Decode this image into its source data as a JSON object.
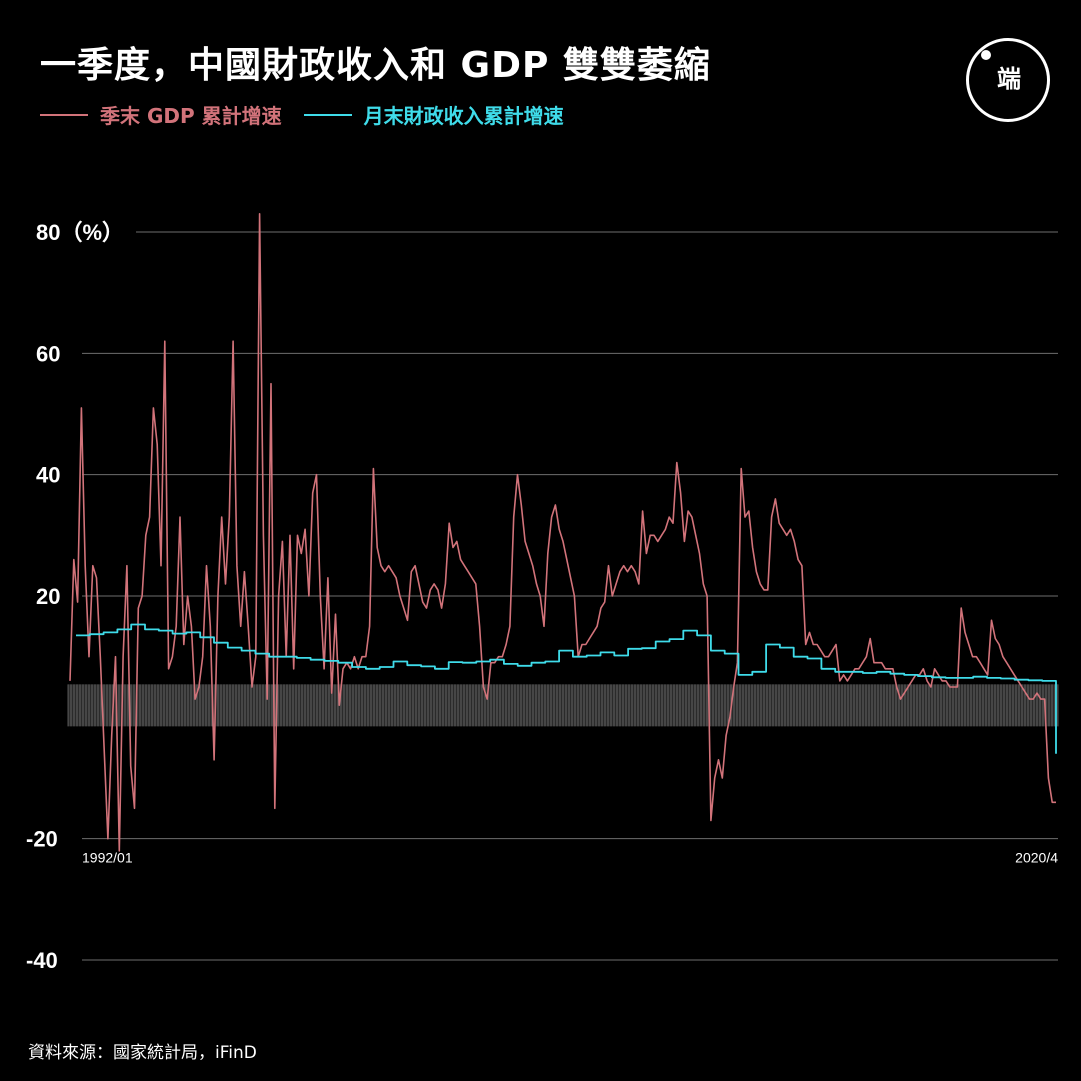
{
  "title": "一季度，中國財政收入和 GDP 雙雙萎縮",
  "logo": {
    "text": "端"
  },
  "source": "資料來源：國家統計局，iFinD",
  "chart_data": {
    "type": "line",
    "ylabel_unit": "（%）",
    "ylim": [
      -40,
      80
    ],
    "yticks": [
      80,
      60,
      40,
      20,
      -20,
      -40
    ],
    "x_range": [
      "1992/01",
      "2020/4"
    ],
    "x_tick_labels": [
      "1992/01",
      "2020/4"
    ],
    "legend_placement": "top-left",
    "grid": true,
    "series": [
      {
        "name": "季末 GDP 累計增速",
        "color": "#d2737a",
        "values": [
          6,
          26,
          19,
          51,
          25,
          10,
          25,
          23,
          10,
          -5,
          -20,
          -3,
          10,
          -22,
          10,
          25,
          -8,
          -15,
          18,
          20,
          30,
          33,
          51,
          45,
          25,
          62,
          8,
          10,
          15,
          33,
          12,
          20,
          15,
          3,
          5,
          10,
          25,
          15,
          -7,
          20,
          33,
          22,
          33,
          62,
          25,
          15,
          24,
          15,
          5,
          10,
          83,
          30,
          3,
          55,
          -15,
          20,
          29,
          10,
          30,
          8,
          30,
          27,
          31,
          20,
          37,
          40,
          20,
          8,
          23,
          4,
          17,
          2,
          8,
          9,
          8,
          10,
          8,
          10,
          10,
          15,
          41,
          28,
          25,
          24,
          25,
          24,
          23,
          20,
          18,
          16,
          24,
          25,
          22,
          19,
          18,
          21,
          22,
          21,
          18,
          22,
          32,
          28,
          29,
          26,
          25,
          24,
          23,
          22,
          15,
          5,
          3,
          9,
          9,
          10,
          10,
          12,
          15,
          33,
          40,
          35,
          29,
          27,
          25,
          22,
          20,
          15,
          27,
          33,
          35,
          31,
          29,
          26,
          23,
          20,
          10,
          12,
          12,
          13,
          14,
          15,
          18,
          19,
          25,
          20,
          22,
          24,
          25,
          24,
          25,
          24,
          22,
          34,
          27,
          30,
          30,
          29,
          30,
          31,
          33,
          32,
          42,
          37,
          29,
          34,
          33,
          30,
          27,
          22,
          20,
          -17,
          -10,
          -7,
          -10,
          -3,
          0,
          5,
          9,
          41,
          33,
          34,
          28,
          24,
          22,
          21,
          21,
          33,
          36,
          32,
          31,
          30,
          31,
          29,
          26,
          25,
          12,
          14,
          12,
          12,
          11,
          10,
          10,
          11,
          12,
          6,
          7,
          6,
          7,
          8,
          8,
          9,
          10,
          13,
          9,
          9,
          9,
          8,
          8,
          8,
          5,
          3,
          4,
          5,
          6,
          7,
          7,
          8,
          6,
          5,
          8,
          7,
          6,
          6,
          5,
          5,
          5,
          18,
          14,
          12,
          10,
          10,
          9,
          8,
          7,
          16,
          13,
          12,
          10,
          9,
          8,
          7,
          6,
          5,
          4,
          3,
          3,
          4,
          3,
          3,
          -10,
          -14,
          -14
        ]
      },
      {
        "name": "月末財政收入累計增速",
        "color": "#3fdcea",
        "values": [
          13.5,
          13.7,
          14,
          14.5,
          15.3,
          14.5,
          14.3,
          13.8,
          14,
          13.2,
          12.3,
          11.5,
          11,
          10.5,
          10,
          10,
          9.8,
          9.5,
          9.3,
          9,
          8.3,
          8,
          8.3,
          9.2,
          8.6,
          8.4,
          8,
          9.1,
          9,
          9.2,
          9.5,
          8.8,
          8.5,
          9,
          9.2,
          11,
          10,
          10.2,
          10.7,
          10.2,
          11.3,
          11.4,
          12.5,
          12.9,
          14.3,
          13.5,
          11,
          10.5,
          7,
          7.5,
          12,
          11.5,
          10,
          9.7,
          8,
          7.5,
          7.5,
          7.3,
          7.5,
          7.2,
          7,
          6.8,
          6.6,
          6.5,
          6.5,
          6.7,
          6.5,
          6.4,
          6.2,
          6.1,
          6,
          -6
        ]
      }
    ]
  }
}
